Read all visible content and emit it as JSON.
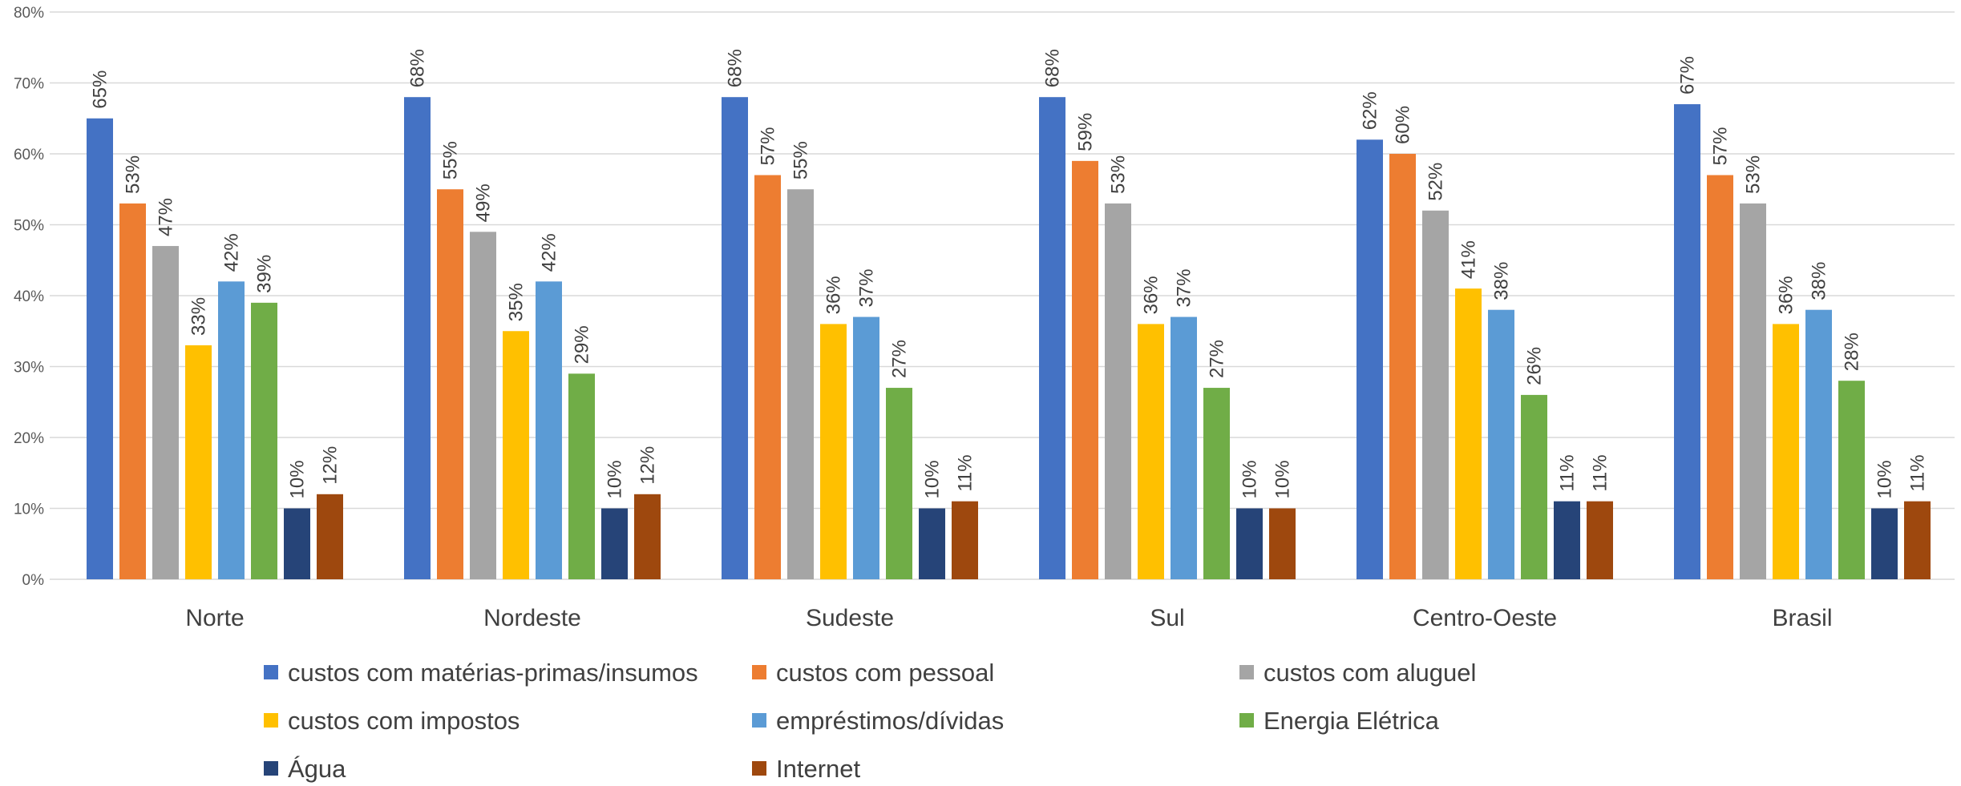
{
  "chart_data": {
    "type": "bar",
    "categories": [
      "Norte",
      "Nordeste",
      "Sudeste",
      "Sul",
      "Centro-Oeste",
      "Brasil"
    ],
    "series": [
      {
        "name": "custos com matérias-primas/insumos",
        "color": "#4472C4",
        "values": [
          65,
          68,
          68,
          68,
          62,
          67
        ],
        "labels": [
          "65%",
          "68%",
          "68%",
          "68%",
          "62%",
          "67%"
        ]
      },
      {
        "name": "custos com pessoal",
        "color": "#ED7D31",
        "values": [
          53,
          55,
          57,
          59,
          60,
          57
        ],
        "labels": [
          "53%",
          "55%",
          "57%",
          "59%",
          "60%",
          "57%"
        ]
      },
      {
        "name": "custos com aluguel",
        "color": "#A5A5A5",
        "values": [
          47,
          49,
          55,
          53,
          52,
          53
        ],
        "labels": [
          "47%",
          "49%",
          "55%",
          "53%",
          "52%",
          "53%"
        ]
      },
      {
        "name": "custos com impostos",
        "color": "#FFC000",
        "values": [
          33,
          35,
          36,
          36,
          41,
          36
        ],
        "labels": [
          "33%",
          "35%",
          "36%",
          "36%",
          "41%",
          "36%"
        ]
      },
      {
        "name": "empréstimos/dívidas",
        "color": "#5B9BD5",
        "values": [
          42,
          42,
          37,
          37,
          38,
          38
        ],
        "labels": [
          "42%",
          "42%",
          "37%",
          "37%",
          "38%",
          "38%"
        ]
      },
      {
        "name": "Energia Elétrica",
        "color": "#70AD47",
        "values": [
          39,
          29,
          27,
          27,
          26,
          28
        ],
        "labels": [
          "39%",
          "29%",
          "27%",
          "27%",
          "26%",
          "28%"
        ]
      },
      {
        "name": "Água",
        "color": "#264478",
        "values": [
          10,
          10,
          10,
          10,
          11,
          10
        ],
        "labels": [
          "10%",
          "10%",
          "10%",
          "10%",
          "11%",
          "10%"
        ]
      },
      {
        "name": "Internet",
        "color": "#9E480E",
        "values": [
          12,
          12,
          11,
          10,
          11,
          11
        ],
        "labels": [
          "12%",
          "12%",
          "11%",
          "10%",
          "11%",
          "11%"
        ]
      }
    ],
    "y_ticks": [
      "0%",
      "10%",
      "20%",
      "30%",
      "40%",
      "50%",
      "60%",
      "70%",
      "80%"
    ],
    "ylim": [
      0,
      80
    ],
    "grid": true,
    "legend_position": "bottom",
    "title": "",
    "xlabel": "",
    "ylabel": ""
  }
}
